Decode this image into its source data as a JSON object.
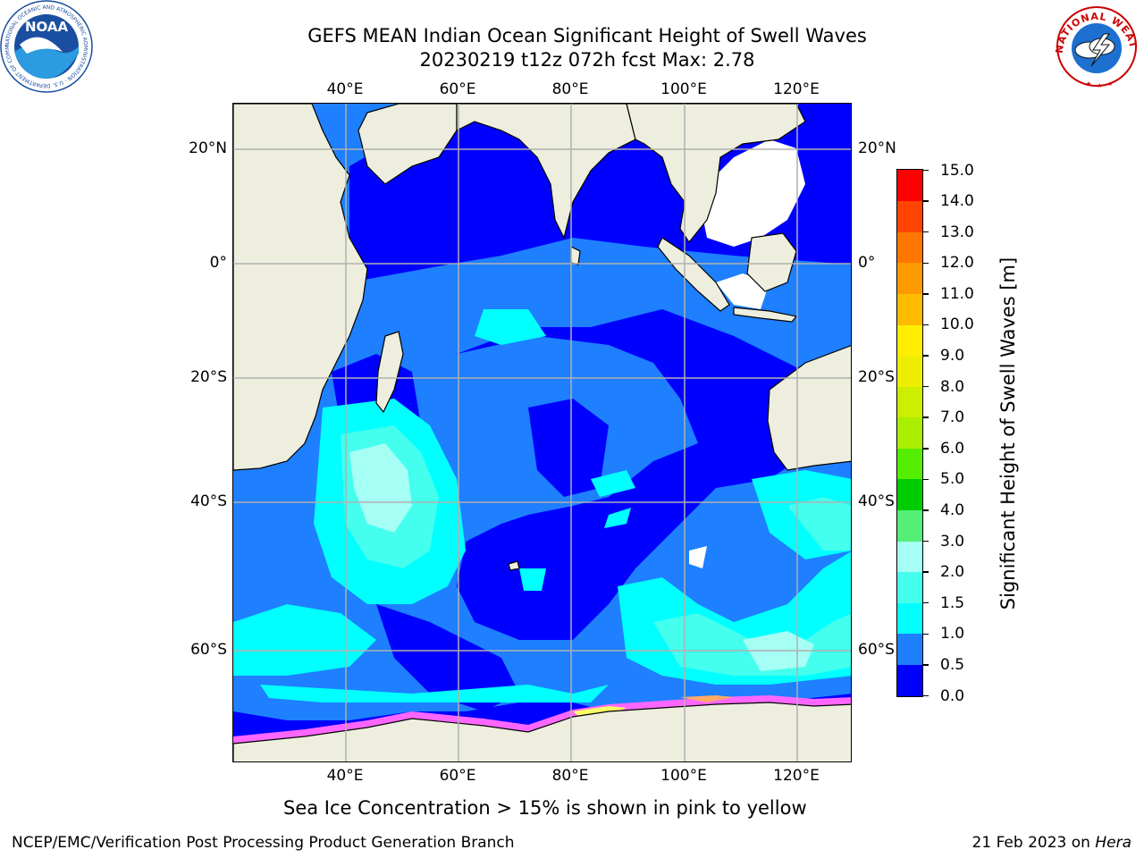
{
  "title": {
    "line1": "GEFS MEAN Indian Ocean Significant Height of Swell Waves",
    "line2": "20230219 t12z 072h fcst   Max: 2.78"
  },
  "map": {
    "lon_ticks": [
      "40°E",
      "60°E",
      "80°E",
      "100°E",
      "120°E"
    ],
    "lat_ticks": [
      "20°N",
      "0°",
      "20°S",
      "40°S",
      "60°S"
    ],
    "colors": {
      "land": "#eeeedf",
      "coast": "#000000",
      "grid": "#b0b0b0",
      "no_data": "#ffffff",
      "sea_ice": [
        "#ff66ff",
        "#ffaa66",
        "#ffff66"
      ]
    }
  },
  "colorbar": {
    "title": "Significant Height of Swell Waves [m]",
    "labels": [
      "15.0",
      "14.0",
      "13.0",
      "12.0",
      "11.0",
      "10.0",
      "9.0",
      "8.0",
      "7.0",
      "6.0",
      "5.0",
      "4.0",
      "3.0",
      "2.0",
      "1.5",
      "1.0",
      "0.5",
      "0.0"
    ],
    "bins": [
      {
        "min": 0.0,
        "max": 0.5,
        "color": "#0000ff"
      },
      {
        "min": 0.5,
        "max": 1.0,
        "color": "#1e7fff"
      },
      {
        "min": 1.0,
        "max": 1.5,
        "color": "#00ffff"
      },
      {
        "min": 1.5,
        "max": 2.0,
        "color": "#44ffee"
      },
      {
        "min": 2.0,
        "max": 3.0,
        "color": "#a5fff5"
      },
      {
        "min": 3.0,
        "max": 4.0,
        "color": "#55ee77"
      },
      {
        "min": 4.0,
        "max": 5.0,
        "color": "#00cc00"
      },
      {
        "min": 5.0,
        "max": 6.0,
        "color": "#55ee00"
      },
      {
        "min": 6.0,
        "max": 7.0,
        "color": "#aaee00"
      },
      {
        "min": 7.0,
        "max": 8.0,
        "color": "#ccee00"
      },
      {
        "min": 8.0,
        "max": 9.0,
        "color": "#eeee00"
      },
      {
        "min": 9.0,
        "max": 10.0,
        "color": "#ffee00"
      },
      {
        "min": 10.0,
        "max": 11.0,
        "color": "#ffbb00"
      },
      {
        "min": 11.0,
        "max": 12.0,
        "color": "#ff9900"
      },
      {
        "min": 12.0,
        "max": 13.0,
        "color": "#ff7700"
      },
      {
        "min": 13.0,
        "max": 14.0,
        "color": "#ff4400"
      },
      {
        "min": 14.0,
        "max": 15.0,
        "color": "#ff0000"
      }
    ]
  },
  "caption": "Sea Ice Concentration > 15% is shown in pink to yellow",
  "footer": {
    "left": "NCEP/EMC/Verification Post Processing Product Generation Branch",
    "right_date": "21 Feb 2023 on ",
    "right_host": "Hera"
  },
  "logos": {
    "noaa": {
      "icon": "noaa-logo-icon",
      "text": "NOAA",
      "ring_text": "NATIONAL OCEANIC AND ATMOSPHERIC ADMINISTRATION · U.S. DEPARTMENT OF COMMERCE"
    },
    "nws": {
      "icon": "nws-logo-icon",
      "ring_text": "NATIONAL WEATHER SERVICE"
    }
  }
}
